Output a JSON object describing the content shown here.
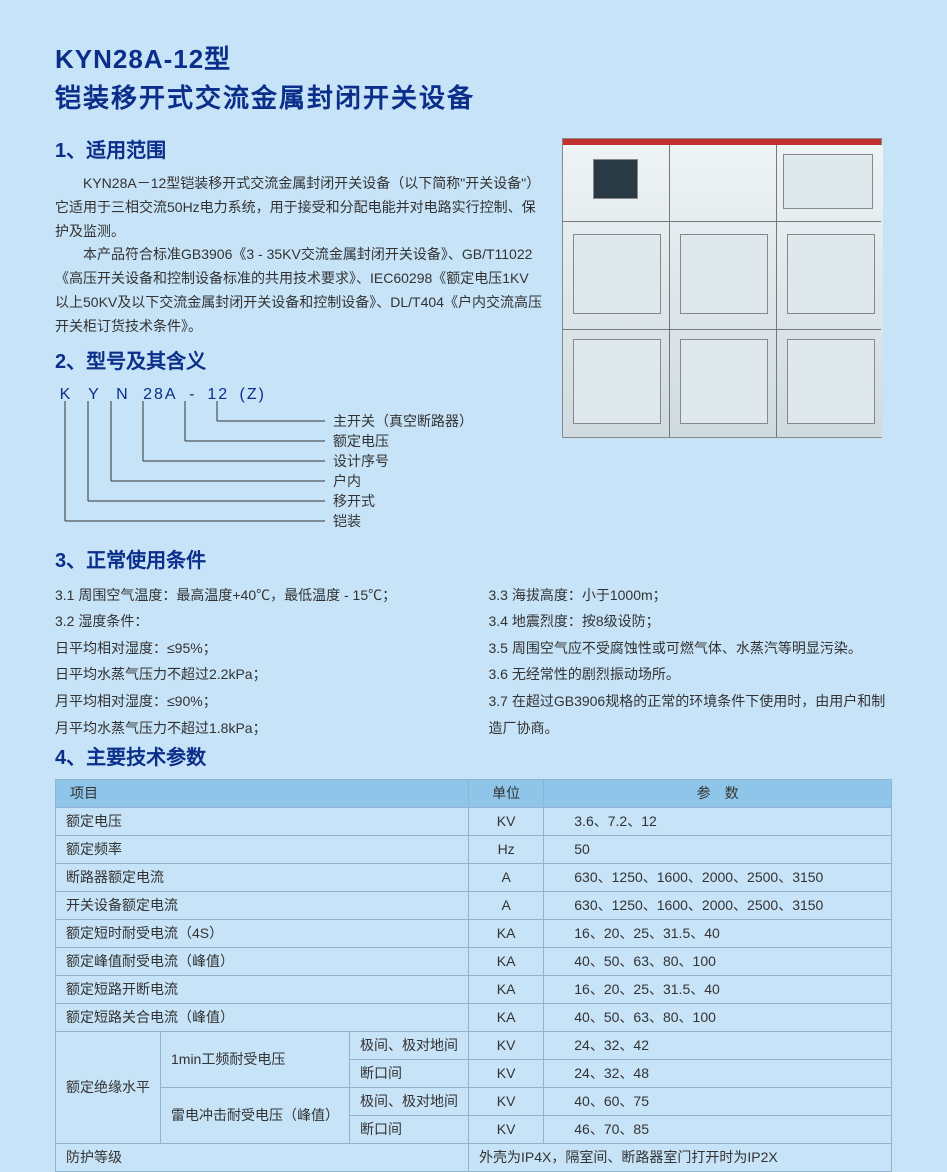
{
  "title_line1": "KYN28A-12型",
  "title_line2": "铠装移开式交流金属封闭开关设备",
  "s1": {
    "heading": "1、适用范围",
    "p1": "KYN28A－12型铠装移开式交流金属封闭开关设备（以下简称\"开关设备\"）它适用于三相交流50Hz电力系统，用于接受和分配电能并对电路实行控制、保护及监测。",
    "p2": "本产品符合标准GB3906《3 - 35KV交流金属封闭开关设备》、GB/T11022《高压开关设备和控制设备标准的共用技术要求》、IEC60298《额定电压1KV以上50KV及以下交流金属封闭开关设备和控制设备》、DL/T404《户内交流高压开关柜订货技术条件》。"
  },
  "s2": {
    "heading": "2、型号及其含义",
    "letters": [
      "K",
      "Y",
      "N",
      "28A",
      "-",
      "12",
      "(Z)"
    ],
    "labels": [
      "主开关（真空断路器）",
      "额定电压",
      "设计序号",
      "户内",
      "移开式",
      "铠装"
    ]
  },
  "s3": {
    "heading": "3、正常使用条件",
    "left": [
      "3.1 周围空气温度：最高温度+40℃，最低温度 - 15℃；",
      "3.2 湿度条件：",
      "日平均相对湿度：≤95%；",
      "日平均水蒸气压力不超过2.2kPa；",
      "月平均相对湿度：≤90%；",
      "月平均水蒸气压力不超过1.8kPa；"
    ],
    "right": [
      "3.3 海拔高度：小于1000m；",
      "3.4 地震烈度：按8级设防；",
      "3.5 周围空气应不受腐蚀性或可燃气体、水蒸汽等明显污染。",
      "3.6 无经常性的剧烈振动场所。",
      "3.7 在超过GB3906规格的正常的环境条件下使用时，由用户和制造厂协商。"
    ]
  },
  "s4": {
    "heading": "4、主要技术参数",
    "headers": [
      "项目",
      "单位",
      "参　数"
    ],
    "rows": [
      {
        "name": "额定电压",
        "unit": "KV",
        "param": "3.6、7.2、12"
      },
      {
        "name": "额定频率",
        "unit": "Hz",
        "param": "50"
      },
      {
        "name": "断路器额定电流",
        "unit": "A",
        "param": "630、1250、1600、2000、2500、3150"
      },
      {
        "name": "开关设备额定电流",
        "unit": "A",
        "param": "630、1250、1600、2000、2500、3150"
      },
      {
        "name": "额定短时耐受电流（4S）",
        "unit": "KA",
        "param": "16、20、25、31.5、40"
      },
      {
        "name": "额定峰值耐受电流（峰值）",
        "unit": "KA",
        "param": "40、50、63、80、100"
      },
      {
        "name": "额定短路开断电流",
        "unit": "KA",
        "param": "16、20、25、31.5、40"
      },
      {
        "name": "额定短路关合电流（峰值）",
        "unit": "KA",
        "param": "40、50、63、80、100"
      }
    ],
    "group": {
      "name": "额定绝缘水平",
      "sub": [
        {
          "g": "1min工频耐受电压",
          "c": "极间、极对地间",
          "unit": "KV",
          "param": "24、32、42"
        },
        {
          "g": "",
          "c": "断口间",
          "unit": "KV",
          "param": "24、32、48"
        },
        {
          "g": "雷电冲击耐受电压（峰值）",
          "c": "极间、极对地间",
          "unit": "KV",
          "param": "40、60、75"
        },
        {
          "g": "",
          "c": "断口间",
          "unit": "KV",
          "param": "46、70、85"
        }
      ]
    },
    "last": {
      "name": "防护等级",
      "param": "外壳为IP4X，隔室间、断路器室门打开时为IP2X"
    }
  },
  "colors": {
    "bg": "#c7e3f7",
    "heading": "#0a2e8a",
    "table_header_bg": "#8ec5e8",
    "table_border": "#8fb4d1"
  }
}
